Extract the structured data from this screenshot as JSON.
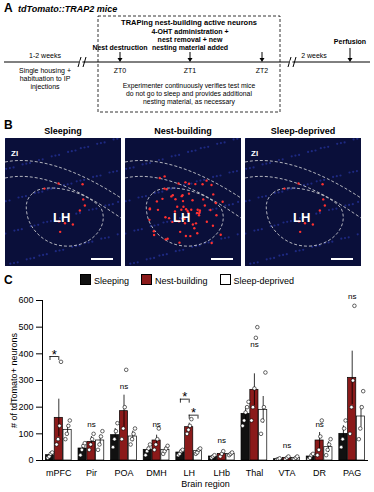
{
  "panel_labels": [
    "A",
    "B",
    "C"
  ],
  "panel_a": {
    "title": "tdTomato::TRAP2 mice",
    "pre": "Single housing + habituation to IP injections",
    "pre_duration": "1-2 weeks",
    "box_title": "TRAPing nest-building active neurons",
    "events": [
      {
        "label": "ZT0",
        "text": "Nest destruction"
      },
      {
        "label": "ZT1",
        "text": "4-OHT administration + nest removal + new nesting material added"
      },
      {
        "label": "ZT2"
      }
    ],
    "box_note": "Experimenter continuously verifies test mice do not go to sleep and provides additional nesting material, as necessary",
    "post_duration": "2 weeks",
    "end": "Perfusion"
  },
  "panel_b": {
    "images": [
      {
        "title": "Sleeping",
        "regions": [
          "ZI",
          "LH"
        ]
      },
      {
        "title": "Nest-building",
        "regions": [
          "LH"
        ]
      },
      {
        "title": "Sleep-deprived",
        "regions": [
          "ZI",
          "LH"
        ]
      }
    ]
  },
  "chart_data": {
    "type": "bar",
    "xlabel": "Brain region",
    "ylabel": "# of tdTomato+ neurons",
    "categories": [
      "mPFC",
      "Pir",
      "POA",
      "DMH",
      "LH",
      "LHb",
      "Thal",
      "VTA",
      "DR",
      "PAG"
    ],
    "series": [
      {
        "name": "Sleeping",
        "color": "#111111",
        "values": [
          20,
          45,
          95,
          40,
          30,
          15,
          175,
          5,
          15,
          100
        ],
        "errors": [
          8,
          15,
          25,
          10,
          5,
          3,
          25,
          2,
          5,
          30
        ],
        "points": [
          [
            10,
            15,
            25,
            30
          ],
          [
            20,
            40,
            55,
            65
          ],
          [
            50,
            80,
            110,
            140
          ],
          [
            20,
            35,
            45,
            60
          ],
          [
            20,
            25,
            35,
            40
          ],
          [
            10,
            15,
            20
          ],
          [
            130,
            150,
            180,
            200,
            220
          ],
          [
            3,
            5,
            8
          ],
          [
            5,
            10,
            20,
            25
          ],
          [
            50,
            80,
            120,
            150
          ]
        ]
      },
      {
        "name": "Nest-building",
        "color": "#8b1a1a",
        "values": [
          160,
          70,
          185,
          75,
          125,
          25,
          265,
          10,
          75,
          310
        ],
        "errors": [
          70,
          20,
          60,
          20,
          15,
          5,
          60,
          3,
          30,
          100
        ],
        "points": [
          [
            60,
            80,
            130,
            370
          ],
          [
            40,
            60,
            80,
            100
          ],
          [
            80,
            120,
            200,
            340
          ],
          [
            40,
            60,
            80,
            120
          ],
          [
            100,
            115,
            130,
            155
          ],
          [
            15,
            25,
            35
          ],
          [
            150,
            200,
            270,
            460,
            500
          ],
          [
            5,
            10,
            15
          ],
          [
            20,
            40,
            90,
            150
          ],
          [
            100,
            200,
            300,
            580
          ]
        ]
      },
      {
        "name": "Sleep-deprived",
        "color": "#ffffff",
        "values": [
          115,
          75,
          90,
          40,
          35,
          25,
          190,
          10,
          50,
          165
        ],
        "errors": [
          20,
          20,
          20,
          10,
          5,
          5,
          50,
          3,
          20,
          40
        ],
        "points": [
          [
            80,
            100,
            130,
            150
          ],
          [
            40,
            60,
            90,
            110
          ],
          [
            60,
            80,
            100,
            120
          ],
          [
            25,
            35,
            45,
            55
          ],
          [
            25,
            30,
            40,
            45
          ],
          [
            20,
            25,
            30
          ],
          [
            100,
            150,
            200,
            330
          ],
          [
            5,
            10,
            15
          ],
          [
            20,
            40,
            60,
            80
          ],
          [
            80,
            120,
            200,
            260
          ]
        ]
      }
    ],
    "ylim": [
      0,
      600
    ],
    "yticks": [
      0,
      100,
      200,
      300,
      400,
      500,
      600
    ],
    "legend": "top",
    "annotations": [
      {
        "category": "mPFC",
        "from": "Sleeping",
        "to": "Nest-building",
        "y": 390,
        "label": "*"
      },
      {
        "category": "Pir",
        "y": 120,
        "label": "ns"
      },
      {
        "category": "POA",
        "y": 260,
        "label": "ns"
      },
      {
        "category": "DMH",
        "y": 120,
        "label": "ns"
      },
      {
        "category": "LH",
        "from": "Sleeping",
        "to": "Nest-building",
        "y": 230,
        "label": "*"
      },
      {
        "category": "LH",
        "from": "Nest-building",
        "to": "Sleep-deprived",
        "y": 170,
        "label": "*"
      },
      {
        "category": "LHb",
        "y": 60,
        "label": "ns"
      },
      {
        "category": "Thal",
        "y": 420,
        "label": "ns"
      },
      {
        "category": "VTA",
        "y": 40,
        "label": "ns"
      },
      {
        "category": "DR",
        "y": 120,
        "label": "ns"
      },
      {
        "category": "PAG",
        "y": 600,
        "label": "ns"
      }
    ]
  }
}
